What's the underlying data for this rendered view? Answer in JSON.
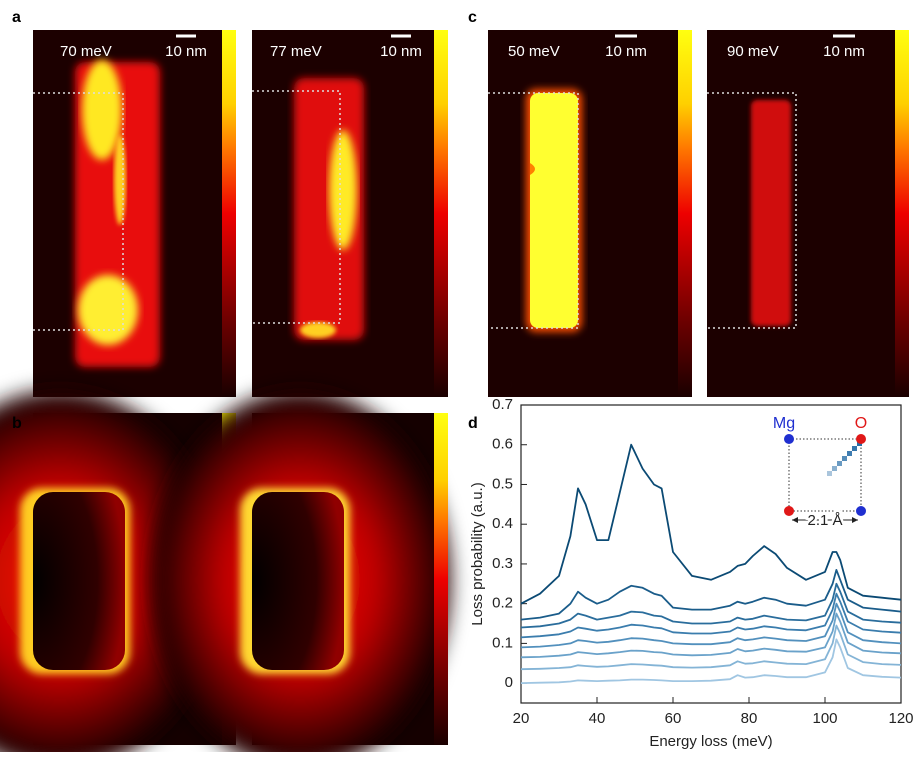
{
  "panel_labels": [
    "a",
    "b",
    "c",
    "d"
  ],
  "maps": [
    {
      "energy": "70 meV",
      "scale": "10 nm"
    },
    {
      "energy": "77 meV",
      "scale": "10 nm"
    },
    {
      "energy": "50 meV",
      "scale": "10 nm"
    },
    {
      "energy": "90 meV",
      "scale": "10 nm"
    }
  ],
  "chart_data": {
    "type": "line",
    "x_label": "Energy loss (meV)",
    "y_label": "Loss probability (a.u.)",
    "xlim": [
      20,
      120
    ],
    "xticks": [
      20,
      40,
      60,
      80,
      100,
      120
    ],
    "ylim": [
      -0.05,
      0.7
    ],
    "yticks": [
      0,
      0.1,
      0.2,
      0.3,
      0.4,
      0.5,
      0.6,
      0.7
    ],
    "grid": false,
    "inset": {
      "atoms": [
        {
          "label": "Mg",
          "color": "#1f2fd0"
        },
        {
          "label": "O",
          "color": "#e01818"
        }
      ],
      "distance": "2.1 Å"
    },
    "x": [
      20,
      25,
      30,
      33,
      35,
      37,
      40,
      43,
      46,
      49,
      52,
      55,
      57,
      60,
      65,
      70,
      75,
      77,
      79,
      81,
      84,
      87,
      90,
      95,
      100,
      102,
      103,
      104,
      106,
      110,
      115,
      120
    ],
    "series": [
      {
        "color": "#0b4a74",
        "values": [
          0.2,
          0.225,
          0.27,
          0.37,
          0.49,
          0.45,
          0.36,
          0.36,
          0.48,
          0.6,
          0.54,
          0.5,
          0.49,
          0.33,
          0.27,
          0.26,
          0.28,
          0.295,
          0.3,
          0.32,
          0.345,
          0.325,
          0.29,
          0.26,
          0.28,
          0.33,
          0.33,
          0.31,
          0.24,
          0.22,
          0.215,
          0.21
        ]
      },
      {
        "color": "#1a5c8a",
        "values": [
          0.16,
          0.165,
          0.175,
          0.2,
          0.23,
          0.215,
          0.2,
          0.21,
          0.23,
          0.245,
          0.24,
          0.225,
          0.22,
          0.19,
          0.185,
          0.185,
          0.195,
          0.205,
          0.2,
          0.205,
          0.215,
          0.21,
          0.2,
          0.195,
          0.21,
          0.25,
          0.285,
          0.26,
          0.21,
          0.19,
          0.185,
          0.18
        ]
      },
      {
        "color": "#2a6d9c",
        "values": [
          0.14,
          0.143,
          0.15,
          0.16,
          0.175,
          0.17,
          0.16,
          0.165,
          0.17,
          0.18,
          0.178,
          0.17,
          0.168,
          0.155,
          0.15,
          0.15,
          0.155,
          0.165,
          0.16,
          0.162,
          0.17,
          0.165,
          0.16,
          0.158,
          0.17,
          0.21,
          0.25,
          0.23,
          0.18,
          0.16,
          0.155,
          0.152
        ]
      },
      {
        "color": "#3b7dad",
        "values": [
          0.115,
          0.118,
          0.123,
          0.13,
          0.14,
          0.137,
          0.132,
          0.135,
          0.14,
          0.147,
          0.145,
          0.14,
          0.138,
          0.128,
          0.125,
          0.125,
          0.13,
          0.14,
          0.135,
          0.137,
          0.143,
          0.14,
          0.135,
          0.133,
          0.145,
          0.185,
          0.225,
          0.205,
          0.155,
          0.135,
          0.13,
          0.127
        ]
      },
      {
        "color": "#5290bd",
        "values": [
          0.09,
          0.092,
          0.096,
          0.1,
          0.108,
          0.106,
          0.102,
          0.104,
          0.108,
          0.113,
          0.112,
          0.108,
          0.106,
          0.1,
          0.098,
          0.098,
          0.103,
          0.113,
          0.108,
          0.11,
          0.115,
          0.112,
          0.108,
          0.106,
          0.118,
          0.158,
          0.2,
          0.18,
          0.128,
          0.108,
          0.103,
          0.1
        ]
      },
      {
        "color": "#6aa2ca",
        "values": [
          0.065,
          0.066,
          0.069,
          0.072,
          0.078,
          0.076,
          0.073,
          0.075,
          0.078,
          0.082,
          0.081,
          0.078,
          0.077,
          0.072,
          0.07,
          0.071,
          0.076,
          0.086,
          0.08,
          0.082,
          0.087,
          0.084,
          0.08,
          0.079,
          0.09,
          0.13,
          0.175,
          0.155,
          0.102,
          0.082,
          0.077,
          0.075
        ]
      },
      {
        "color": "#84b4d6",
        "values": [
          0.035,
          0.036,
          0.038,
          0.04,
          0.045,
          0.043,
          0.041,
          0.042,
          0.045,
          0.048,
          0.047,
          0.045,
          0.044,
          0.04,
          0.039,
          0.04,
          0.045,
          0.055,
          0.049,
          0.05,
          0.055,
          0.052,
          0.049,
          0.048,
          0.06,
          0.1,
          0.145,
          0.125,
          0.072,
          0.053,
          0.048,
          0.046
        ]
      },
      {
        "color": "#a0c6e2",
        "values": [
          0,
          0.001,
          0.002,
          0.004,
          0.007,
          0.006,
          0.005,
          0.006,
          0.007,
          0.009,
          0.009,
          0.008,
          0.007,
          0.005,
          0.005,
          0.006,
          0.01,
          0.02,
          0.014,
          0.015,
          0.02,
          0.018,
          0.015,
          0.015,
          0.027,
          0.065,
          0.11,
          0.09,
          0.038,
          0.02,
          0.016,
          0.014
        ]
      }
    ]
  }
}
